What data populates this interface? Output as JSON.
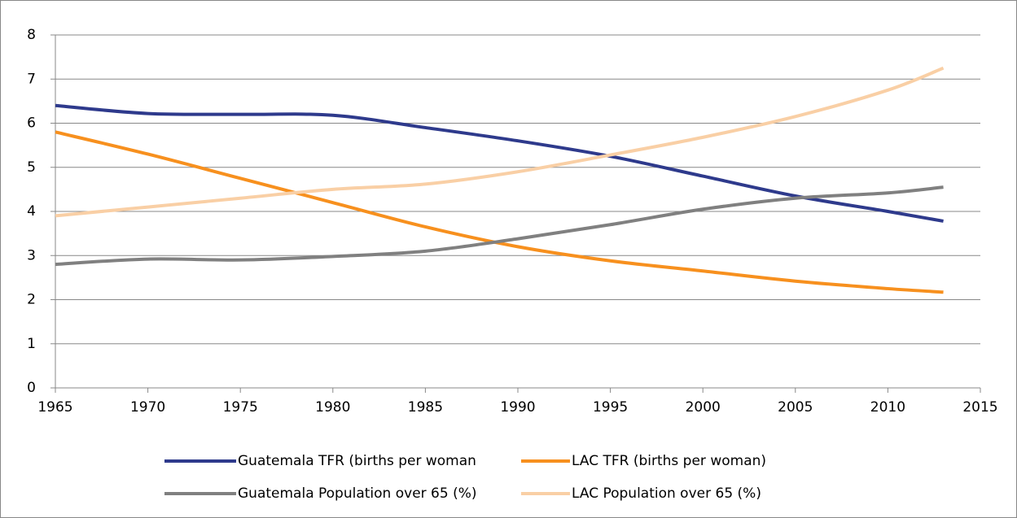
{
  "chart_data": {
    "type": "line",
    "x": [
      1965,
      1970,
      1975,
      1980,
      1985,
      1990,
      1995,
      2000,
      2005,
      2010,
      2013
    ],
    "series": [
      {
        "name": "Guatemala TFR (births per woman",
        "color": "#2e3a8c",
        "values": [
          6.4,
          6.22,
          6.2,
          6.18,
          5.9,
          5.6,
          5.25,
          4.8,
          4.35,
          4.0,
          3.78
        ]
      },
      {
        "name": "LAC TFR (births per woman)",
        "color": "#f7901e",
        "values": [
          5.8,
          5.3,
          4.75,
          4.2,
          3.65,
          3.2,
          2.88,
          2.65,
          2.42,
          2.25,
          2.17
        ]
      },
      {
        "name": "Guatemala Population over 65 (%)",
        "color": "#808080",
        "values": [
          2.8,
          2.92,
          2.9,
          2.98,
          3.1,
          3.38,
          3.7,
          4.05,
          4.3,
          4.42,
          4.55
        ]
      },
      {
        "name": "LAC Population over 65 (%)",
        "color": "#f9cfa5",
        "values": [
          3.9,
          4.1,
          4.3,
          4.5,
          4.62,
          4.9,
          5.28,
          5.68,
          6.15,
          6.75,
          7.25
        ]
      }
    ],
    "xlim": [
      1965,
      2015
    ],
    "xticks": [
      1965,
      1970,
      1975,
      1980,
      1985,
      1990,
      1995,
      2000,
      2005,
      2010,
      2015
    ],
    "ylim": [
      0,
      8
    ],
    "yticks": [
      0,
      1,
      2,
      3,
      4,
      5,
      6,
      7,
      8
    ],
    "grid": true,
    "legend": "bottom",
    "smooth": true
  }
}
